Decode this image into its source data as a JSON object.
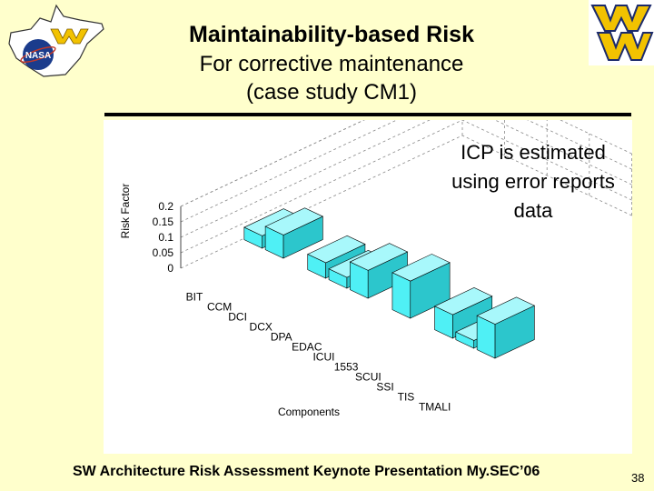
{
  "slide": {
    "title_line1": "Maintainability-based Risk",
    "title_line2": "For corrective maintenance",
    "title_line3": "(case study CM1)",
    "note_line1": "ICP is estimated",
    "note_line2": "using error reports",
    "note_line3": "data",
    "footer": "SW Architecture Risk Assessment Keynote Presentation My.SEC’06",
    "page_number": "38",
    "colors": {
      "background": "#ffffcc",
      "bar": "#4ff0f5",
      "bar_side": "#2cc6cc",
      "bar_top": "#a8f8fb",
      "logo_gold": "#f2c200",
      "logo_navy": "#1b2a6b"
    }
  },
  "logos": {
    "left": "wv-state-nasa-logo",
    "right": "wv-university-logo"
  },
  "chart_data": {
    "type": "bar",
    "title": "",
    "xlabel": "Components",
    "ylabel": "Risk Factor",
    "ylim": [
      0,
      0.2
    ],
    "yticks": [
      "0",
      "0.05",
      "0.1",
      "0.15",
      "0.2"
    ],
    "categories": [
      "BIT",
      "CCM",
      "DCI",
      "DCX",
      "DPA",
      "EDAC",
      "ICUI",
      "1553",
      "SCUI",
      "SSI",
      "TIS",
      "TMALI"
    ],
    "values": [
      0.04,
      0.075,
      0.0,
      0.05,
      0.035,
      0.09,
      0.0,
      0.12,
      0.0,
      0.076,
      0.025,
      0.11
    ],
    "projection": "3d-oblique"
  }
}
